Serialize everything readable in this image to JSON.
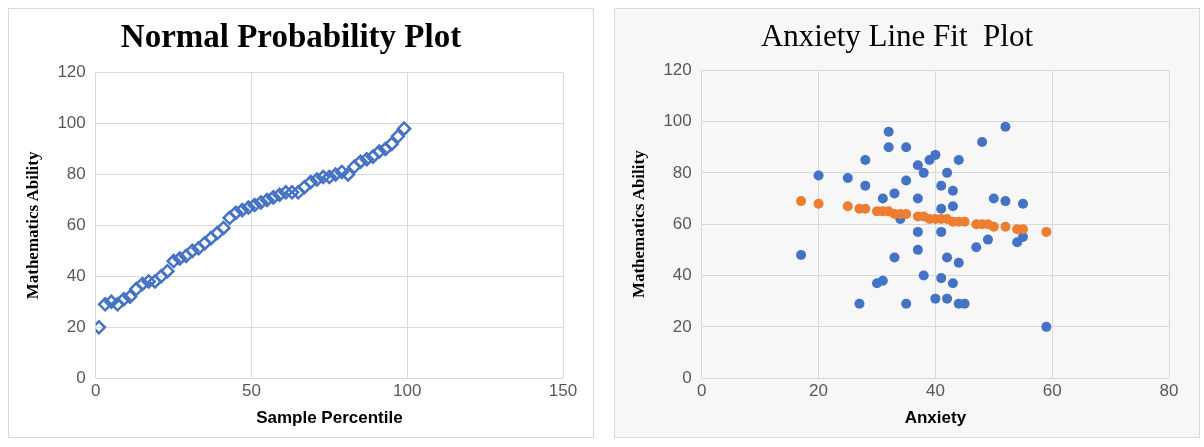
{
  "chart_data": [
    {
      "type": "scatter",
      "title": "Normal Probability Plot",
      "xlabel": "Sample Percentile",
      "ylabel": "Mathematics Ability",
      "marker": "diamond",
      "grid": true,
      "xlim": [
        0,
        150
      ],
      "xticks": [
        0,
        50,
        100,
        150
      ],
      "ylim": [
        0,
        120
      ],
      "yticks": [
        0,
        20,
        40,
        60,
        80,
        100,
        120
      ],
      "series": [
        {
          "color": "#4472c4",
          "x": [
            1,
            3,
            5,
            7,
            9,
            11,
            13,
            15,
            17,
            19,
            21,
            23,
            25,
            27,
            29,
            31,
            33,
            35,
            37,
            39,
            41,
            43,
            45,
            47,
            49,
            51,
            53,
            55,
            57,
            59,
            61,
            63,
            65,
            67,
            69,
            71,
            73,
            75,
            77,
            79,
            81,
            83,
            85,
            87,
            89,
            91,
            93,
            95,
            97,
            99
          ],
          "values": [
            20,
            29,
            30,
            29,
            31,
            32,
            35,
            37,
            38,
            38,
            40,
            42,
            46,
            47,
            48,
            50,
            51,
            53,
            55,
            57,
            59,
            63,
            65,
            66,
            67,
            68,
            69,
            70,
            71,
            72,
            73,
            73,
            73,
            75,
            77,
            78,
            79,
            79,
            80,
            81,
            80,
            83,
            85,
            86,
            87,
            89,
            90,
            92,
            95,
            98
          ]
        }
      ]
    },
    {
      "type": "scatter",
      "title": "Anxiety Line Fit  Plot",
      "xlabel": "Anxiety",
      "ylabel": "Mathematics Ability",
      "marker": "circle",
      "grid": true,
      "xlim": [
        0,
        80
      ],
      "xticks": [
        0,
        20,
        40,
        60,
        80
      ],
      "ylim": [
        0,
        120
      ],
      "yticks": [
        0,
        20,
        40,
        60,
        80,
        100,
        120
      ],
      "series": [
        {
          "color": "#4472c4",
          "x": [
            17,
            20,
            25,
            28,
            28,
            27,
            31,
            30,
            31,
            32,
            32,
            33,
            33,
            34,
            35,
            35,
            35,
            37,
            37,
            37,
            37,
            38,
            38,
            39,
            40,
            41,
            41,
            41,
            40,
            41,
            42,
            42,
            42,
            43,
            43,
            43,
            44,
            44,
            44,
            45,
            47,
            48,
            49,
            50,
            52,
            52,
            54,
            55,
            55,
            59
          ],
          "values": [
            48,
            79,
            78,
            85,
            75,
            29,
            70,
            37,
            38,
            96,
            90,
            47,
            72,
            62,
            90,
            77,
            29,
            70,
            83,
            57,
            50,
            40,
            80,
            85,
            87,
            57,
            66,
            75,
            31,
            39,
            80,
            47,
            31,
            37,
            73,
            67,
            85,
            45,
            29,
            29,
            51,
            92,
            54,
            70,
            69,
            98,
            53,
            68,
            55,
            20
          ]
        },
        {
          "color": "#ed7d31",
          "x": [
            17,
            20,
            25,
            27,
            28,
            30,
            31,
            32,
            33,
            34,
            35,
            37,
            38,
            39,
            40,
            41,
            42,
            43,
            44,
            45,
            47,
            48,
            49,
            50,
            52,
            54,
            55,
            59
          ],
          "values": [
            69,
            68,
            67,
            66,
            66,
            65,
            65,
            65,
            64,
            64,
            64,
            63,
            63,
            62,
            62,
            62,
            62,
            61,
            61,
            61,
            60,
            60,
            60,
            59,
            59,
            58,
            58,
            57
          ]
        }
      ]
    }
  ]
}
